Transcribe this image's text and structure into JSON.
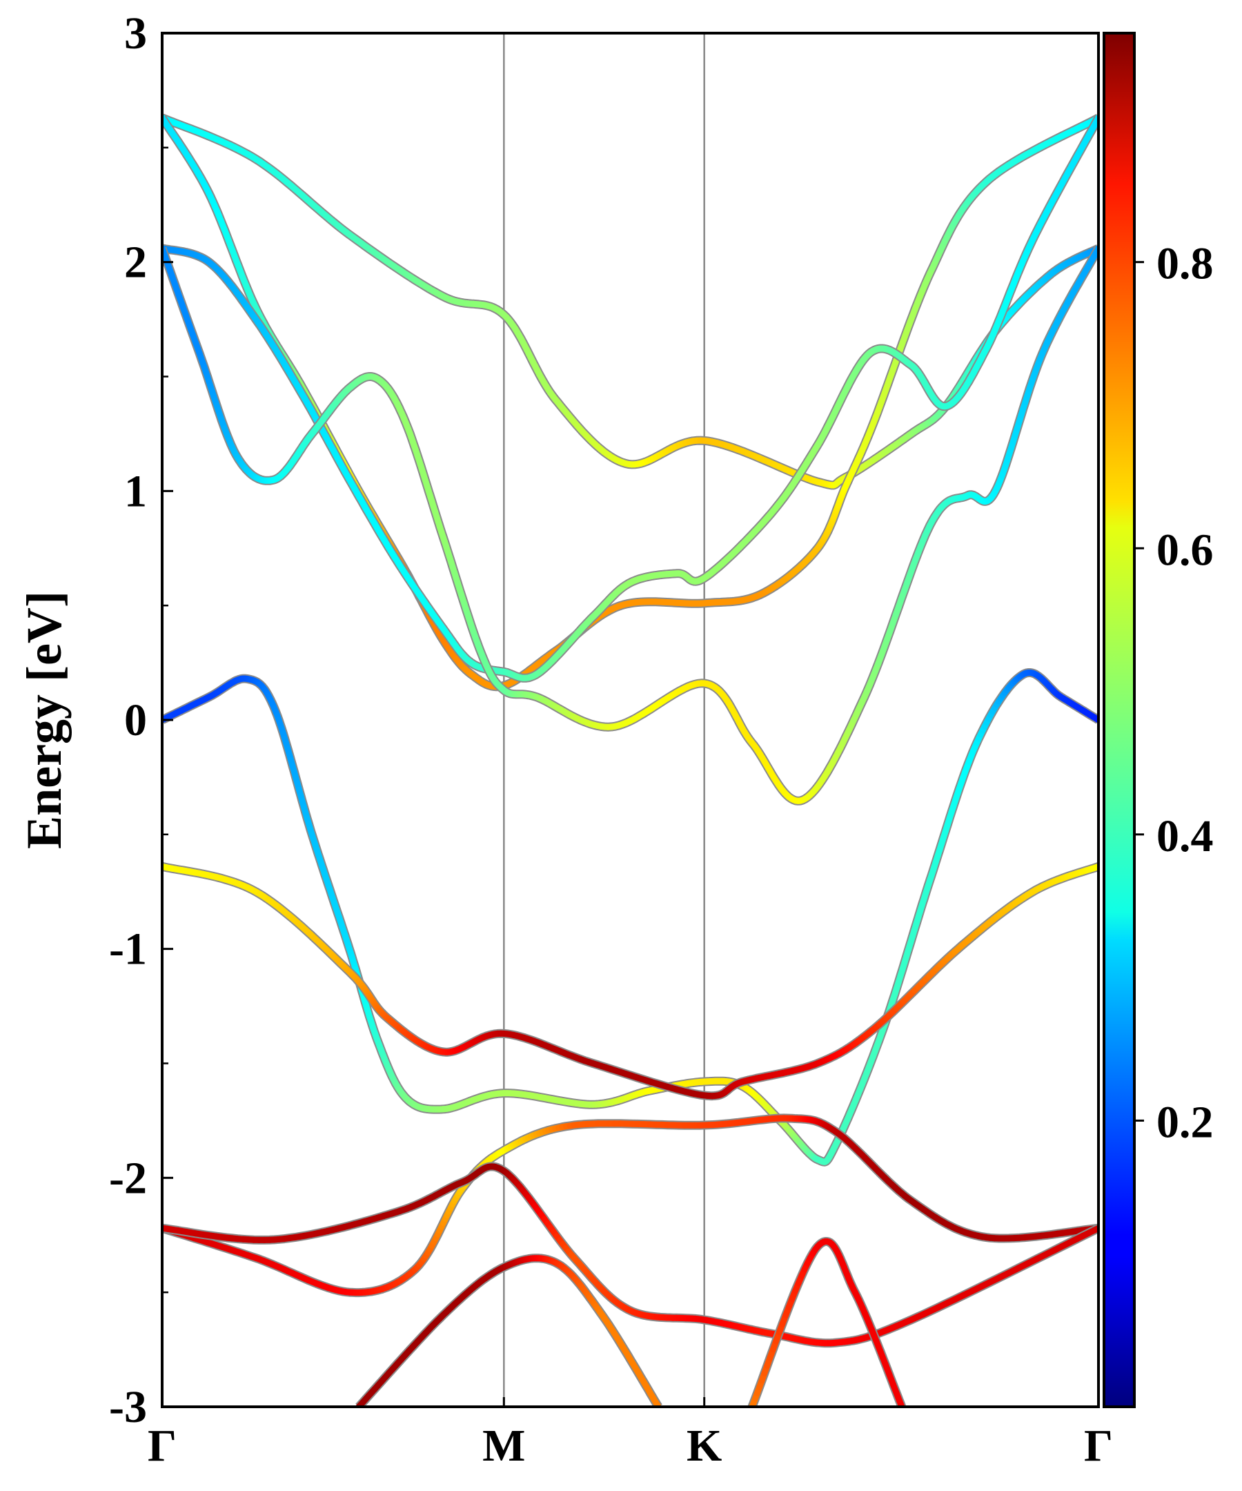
{
  "chart_data": {
    "type": "line",
    "title": "",
    "xlabel": "",
    "ylabel": "Energy [eV]",
    "ylim": [
      -3,
      3
    ],
    "xlim": [
      0,
      1
    ],
    "yticks": [
      "-3",
      "-2",
      "-1",
      "0",
      "1",
      "2",
      "3"
    ],
    "ytick_values": [
      -3,
      -2,
      -1,
      0,
      1,
      2,
      3
    ],
    "kpoints": [
      {
        "label": "Γ",
        "k": 0
      },
      {
        "label": "M",
        "k": 0.365
      },
      {
        "label": "K",
        "k": 0.579
      },
      {
        "label": "Γ",
        "k": 1
      }
    ],
    "colorbar": {
      "colormap": "jet",
      "range": [
        0,
        0.96
      ],
      "ticks": [
        "0.2",
        "0.4",
        "0.6",
        "0.8"
      ],
      "tick_values": [
        0.2,
        0.4,
        0.6,
        0.8
      ]
    },
    "bands": [
      {
        "k": [
          0,
          0.1,
          0.2,
          0.3,
          0.365,
          0.42,
          0.495,
          0.579,
          0.7,
          0.73,
          0.8,
          0.837,
          0.89,
          0.95,
          1
        ],
        "E": [
          2.63,
          2.45,
          2.12,
          1.85,
          1.77,
          1.4,
          1.12,
          1.22,
          1.04,
          1.06,
          1.25,
          1.37,
          1.7,
          1.95,
          2.06
        ],
        "w": [
          0.35,
          0.38,
          0.42,
          0.48,
          0.5,
          0.52,
          0.58,
          0.66,
          0.62,
          0.58,
          0.5,
          0.45,
          0.37,
          0.3,
          0.26
        ]
      },
      {
        "k": [
          0,
          0.05,
          0.1,
          0.15,
          0.21,
          0.26,
          0.3,
          0.33,
          0.365,
          0.42,
          0.49,
          0.579,
          0.64,
          0.7,
          0.73,
          0.76,
          0.82,
          0.88,
          1
        ],
        "E": [
          2.63,
          2.3,
          1.8,
          1.45,
          1.0,
          0.65,
          0.35,
          0.2,
          0.15,
          0.3,
          0.5,
          0.51,
          0.55,
          0.75,
          1.02,
          1.3,
          1.95,
          2.35,
          2.63
        ],
        "w": [
          0.33,
          0.35,
          0.4,
          0.5,
          0.62,
          0.72,
          0.72,
          0.7,
          0.7,
          0.7,
          0.7,
          0.7,
          0.7,
          0.66,
          0.6,
          0.57,
          0.5,
          0.4,
          0.35
        ]
      },
      {
        "k": [
          0,
          0.05,
          0.1,
          0.15,
          0.2,
          0.25,
          0.3,
          0.33,
          0.365,
          0.4,
          0.46,
          0.5,
          0.55,
          0.579,
          0.65,
          0.7,
          0.755,
          0.8,
          0.837,
          0.88,
          0.93,
          1
        ],
        "E": [
          2.06,
          2.0,
          1.75,
          1.42,
          1.05,
          0.7,
          0.4,
          0.25,
          0.21,
          0.2,
          0.45,
          0.6,
          0.64,
          0.62,
          0.9,
          1.2,
          1.6,
          1.55,
          1.37,
          1.62,
          2.1,
          2.63
        ],
        "w": [
          0.25,
          0.27,
          0.3,
          0.33,
          0.35,
          0.36,
          0.37,
          0.4,
          0.42,
          0.45,
          0.48,
          0.5,
          0.5,
          0.5,
          0.5,
          0.5,
          0.47,
          0.42,
          0.4,
          0.38,
          0.35,
          0.33
        ]
      },
      {
        "k": [
          0,
          0.04,
          0.08,
          0.12,
          0.16,
          0.2,
          0.23,
          0.26,
          0.3,
          0.34,
          0.365,
          0.4,
          0.48,
          0.579,
          0.63,
          0.684,
          0.75,
          0.82,
          0.86,
          0.89,
          0.94,
          1
        ],
        "E": [
          2.06,
          1.6,
          1.15,
          1.05,
          1.25,
          1.45,
          1.49,
          1.3,
          0.8,
          0.3,
          0.13,
          0.1,
          -0.03,
          0.16,
          -0.1,
          -0.35,
          0.1,
          0.85,
          0.98,
          1.0,
          1.6,
          2.06
        ],
        "w": [
          0.25,
          0.25,
          0.3,
          0.36,
          0.4,
          0.45,
          0.48,
          0.5,
          0.5,
          0.46,
          0.45,
          0.5,
          0.58,
          0.62,
          0.62,
          0.6,
          0.5,
          0.42,
          0.38,
          0.35,
          0.3,
          0.27
        ]
      },
      {
        "k": [
          0,
          0.05,
          0.09,
          0.12,
          0.16,
          0.2,
          0.23,
          0.26,
          0.3,
          0.365,
          0.46,
          0.52,
          0.579,
          0.62,
          0.66,
          0.7,
          0.72,
          0.77,
          0.82,
          0.87,
          0.92,
          0.96,
          1
        ],
        "E": [
          0,
          0.1,
          0.18,
          0.05,
          -0.5,
          -1.0,
          -1.4,
          -1.65,
          -1.7,
          -1.63,
          -1.68,
          -1.62,
          -1.58,
          -1.6,
          -1.75,
          -1.92,
          -1.85,
          -1.35,
          -0.7,
          -0.1,
          0.2,
          0.1,
          0
        ],
        "w": [
          0.18,
          0.18,
          0.2,
          0.25,
          0.3,
          0.33,
          0.4,
          0.47,
          0.5,
          0.52,
          0.53,
          0.6,
          0.62,
          0.62,
          0.55,
          0.42,
          0.42,
          0.42,
          0.4,
          0.35,
          0.22,
          0.17,
          0.15
        ]
      },
      {
        "k": [
          0,
          0.1,
          0.2,
          0.24,
          0.3,
          0.365,
          0.46,
          0.579,
          0.62,
          0.7,
          0.76,
          0.85,
          0.93,
          1
        ],
        "E": [
          -0.64,
          -0.75,
          -1.1,
          -1.3,
          -1.45,
          -1.37,
          -1.5,
          -1.64,
          -1.58,
          -1.5,
          -1.35,
          -1.0,
          -0.75,
          -0.64
        ],
        "w": [
          0.6,
          0.62,
          0.68,
          0.75,
          0.82,
          0.9,
          0.92,
          0.92,
          0.88,
          0.86,
          0.8,
          0.7,
          0.64,
          0.6
        ]
      },
      {
        "k": [
          0,
          0.1,
          0.2,
          0.27,
          0.32,
          0.365,
          0.44,
          0.579,
          0.67,
          0.72,
          0.8,
          0.88,
          1
        ],
        "E": [
          -2.22,
          -2.35,
          -2.5,
          -2.4,
          -2.05,
          -1.88,
          -1.77,
          -1.77,
          -1.74,
          -1.8,
          -2.1,
          -2.26,
          -2.22
        ],
        "w": [
          0.88,
          0.86,
          0.84,
          0.78,
          0.65,
          0.6,
          0.75,
          0.78,
          0.8,
          0.9,
          0.93,
          0.92,
          0.9
        ]
      },
      {
        "k": [
          0,
          0.12,
          0.25,
          0.32,
          0.365,
          0.44,
          0.5,
          0.579,
          0.65,
          0.72,
          0.8,
          1
        ],
        "E": [
          -2.22,
          -2.27,
          -2.15,
          -2.02,
          -1.97,
          -2.35,
          -2.58,
          -2.62,
          -2.68,
          -2.72,
          -2.62,
          -2.22
        ],
        "w": [
          0.88,
          0.9,
          0.92,
          0.93,
          0.93,
          0.76,
          0.8,
          0.85,
          0.82,
          0.84,
          0.86,
          0.88
        ]
      },
      {
        "k": [
          0.21,
          0.3,
          0.365,
          0.42,
          0.47,
          0.53
        ],
        "E": [
          -3,
          -2.6,
          -2.39,
          -2.37,
          -2.6,
          -3
        ],
        "w": [
          0.93,
          0.93,
          0.92,
          0.8,
          0.72,
          0.72
        ]
      },
      {
        "k": [
          0.63,
          0.7,
          0.74,
          0.79
        ],
        "E": [
          -3,
          -2.3,
          -2.5,
          -3
        ],
        "w": [
          0.72,
          0.85,
          0.85,
          0.85
        ]
      }
    ]
  }
}
